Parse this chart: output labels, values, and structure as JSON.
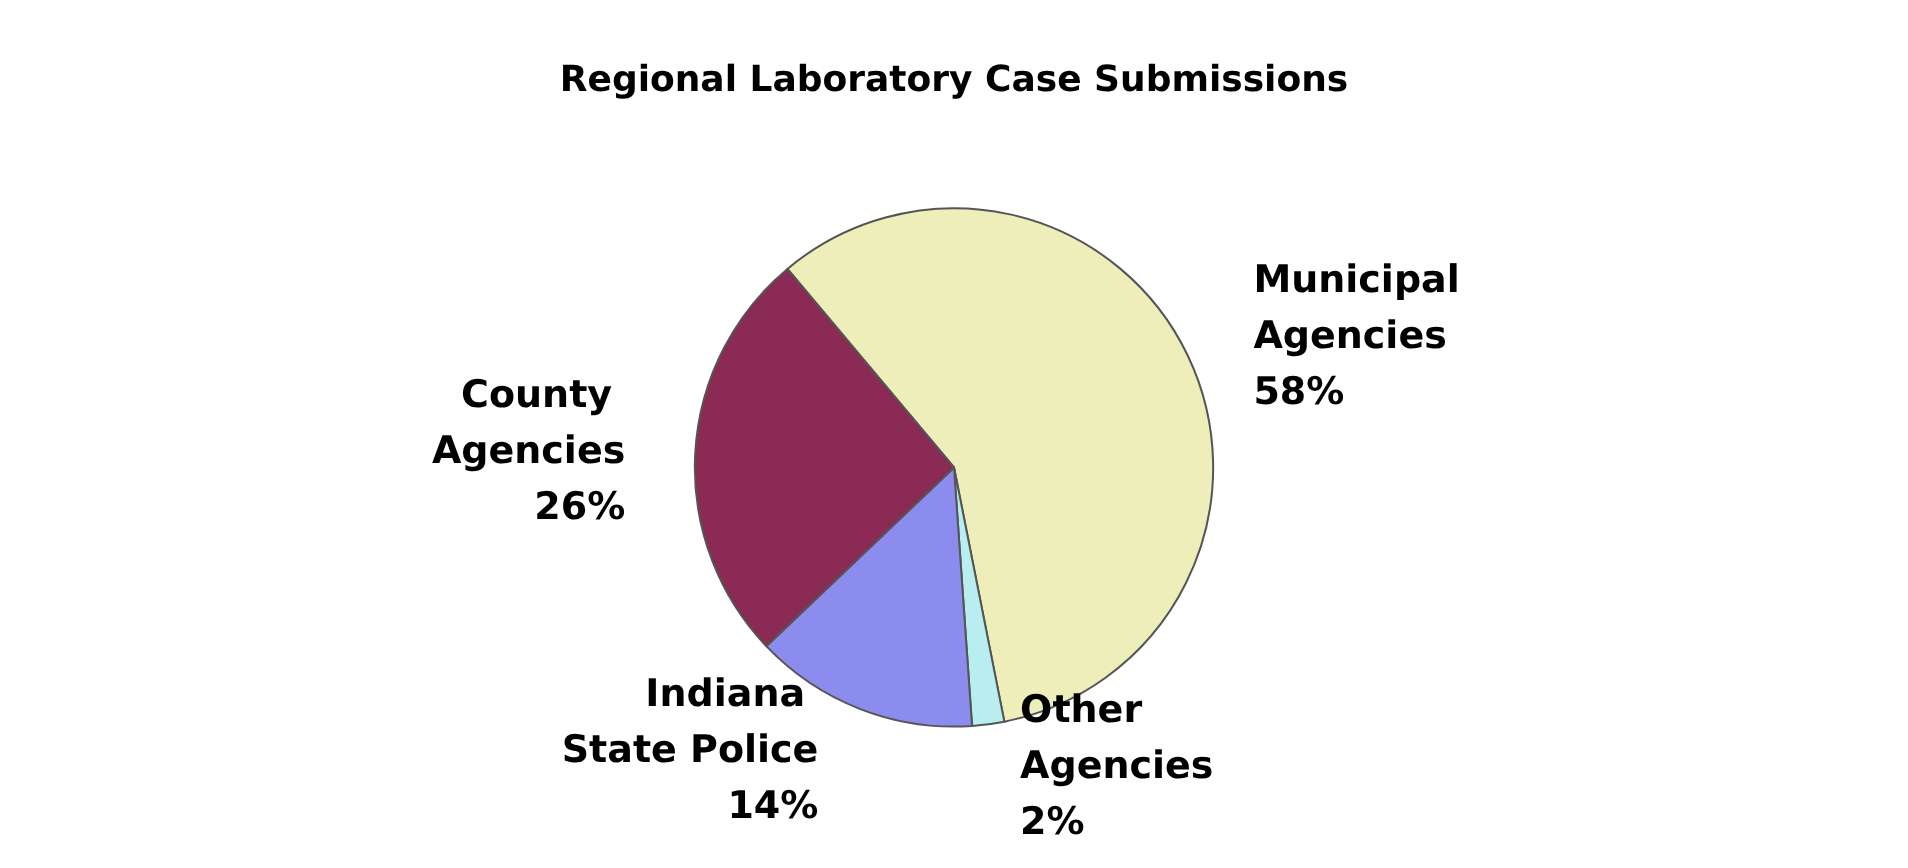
{
  "chart_data": {
    "type": "pie",
    "title": "Regional Laboratory Case Submissions",
    "categories": [
      "Municipal Agencies",
      "Other Agencies",
      "Indiana State Police",
      "County Agencies"
    ],
    "values": [
      58,
      2,
      14,
      26
    ],
    "value_labels": [
      "58%",
      "2%",
      "14%",
      "26%"
    ],
    "colors": [
      "#eeeebb",
      "#b8eef0",
      "#8c8cee",
      "#8b2a55"
    ],
    "data_labels": true,
    "legend": false
  }
}
